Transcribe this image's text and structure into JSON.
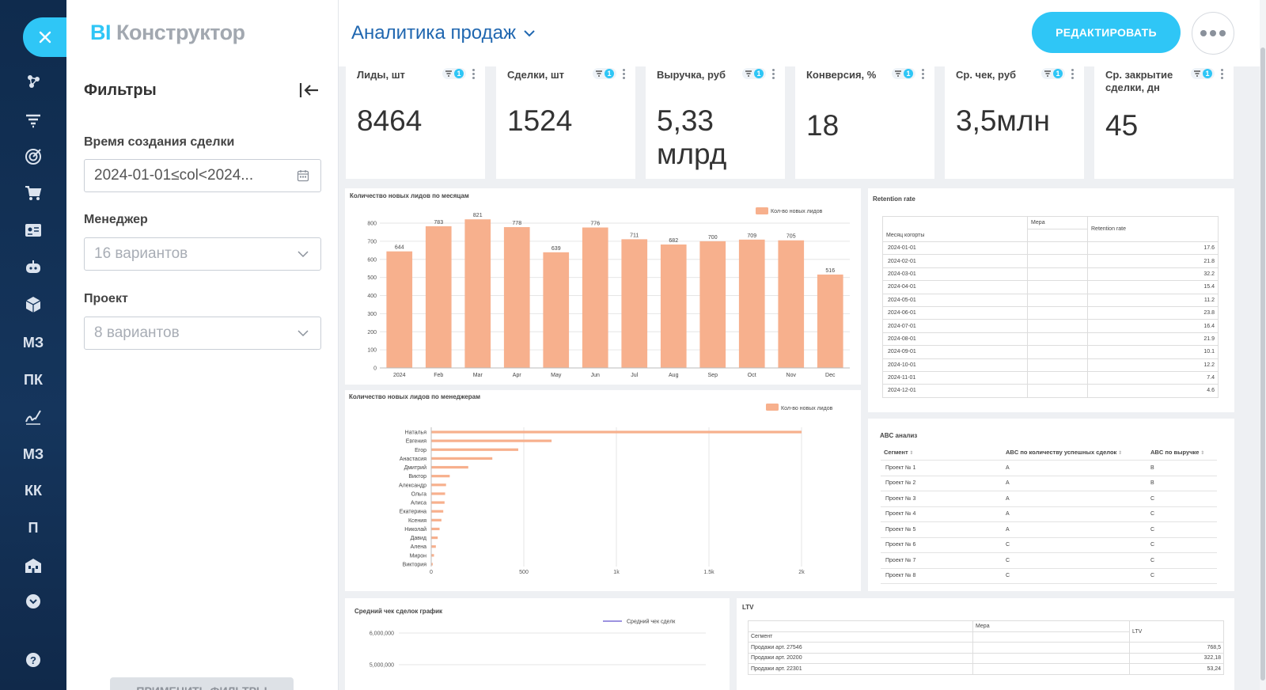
{
  "app": {
    "logo_bi": "BI",
    "logo_rest": "Конструктор"
  },
  "leftnav": {
    "items": [
      {
        "name": "sites-icon",
        "text": ""
      },
      {
        "name": "funnel-icon",
        "text": ""
      },
      {
        "name": "target-icon",
        "text": ""
      },
      {
        "name": "cart-icon",
        "text": ""
      },
      {
        "name": "contact-card-icon",
        "text": ""
      },
      {
        "name": "robot-icon",
        "text": ""
      },
      {
        "name": "box-icon",
        "text": ""
      },
      {
        "name": "nav-text-m3",
        "text": "МЗ"
      },
      {
        "name": "nav-text-pk",
        "text": "ПК"
      },
      {
        "name": "signature-icon",
        "text": ""
      },
      {
        "name": "nav-text-m3-2",
        "text": "МЗ"
      },
      {
        "name": "nav-text-kk",
        "text": "КК"
      },
      {
        "name": "nav-text-p",
        "text": "П"
      },
      {
        "name": "building-icon",
        "text": ""
      },
      {
        "name": "chevron-circle-icon",
        "text": ""
      },
      {
        "name": "help-icon",
        "text": ""
      }
    ]
  },
  "filters": {
    "title": "Фильтры",
    "created_label": "Время создания сделки",
    "created_value": "2024-01-01≤col<2024...",
    "manager_label": "Менеджер",
    "manager_placeholder": "16 вариантов",
    "project_label": "Проект",
    "project_placeholder": "8 вариантов",
    "apply_label": "ПРИМЕНИТЬ ФИЛЬТРЫ"
  },
  "header": {
    "title": "Аналитика продаж",
    "edit_label": "РЕДАКТИРОВАТЬ"
  },
  "kpis": [
    {
      "title": "Лиды, шт",
      "value": "8464",
      "badge": "1"
    },
    {
      "title": "Сделки, шт",
      "value": "1524",
      "badge": "1"
    },
    {
      "title": "Выручка, руб",
      "value": "5,33 млрд",
      "badge": "1"
    },
    {
      "title": "Конверсия, %",
      "value": "18",
      "badge": "1"
    },
    {
      "title": "Ср. чек, руб",
      "value": "3,5млн",
      "badge": "1"
    },
    {
      "title": "Ср. закрытие сделки, дн",
      "value": "45",
      "badge": "1"
    }
  ],
  "chart_data": [
    {
      "type": "bar",
      "title": "Количество новых лидов по месяцам",
      "legend": "Кол-во новых лидов",
      "legend_position": "top-right",
      "categories": [
        "2024",
        "Feb",
        "Mar",
        "Apr",
        "May",
        "Jun",
        "Jul",
        "Aug",
        "Sep",
        "Oct",
        "Nov",
        "Dec"
      ],
      "values": [
        644,
        783,
        821,
        778,
        639,
        776,
        711,
        682,
        700,
        709,
        705,
        516
      ],
      "ylim": [
        0,
        800
      ],
      "yticks": [
        0,
        100,
        200,
        300,
        400,
        500,
        600,
        700,
        800
      ],
      "grid": true,
      "color": "#f7b08d"
    },
    {
      "type": "bar",
      "orientation": "horizontal",
      "title": "Количество новых лидов по менеджерам",
      "legend": "Кол-во новых лидов",
      "legend_position": "top-right",
      "categories": [
        "Наталья",
        "Евгения",
        "Егор",
        "Анастасия",
        "Дмитрий",
        "Виктор",
        "Александр",
        "Ольга",
        "Алиса",
        "Екатерина",
        "Ксения",
        "Николай",
        "Давид",
        "Алена",
        "Мирон",
        "Виктория"
      ],
      "values": [
        2000,
        650,
        470,
        330,
        200,
        100,
        80,
        75,
        72,
        65,
        55,
        45,
        35,
        25,
        15,
        8
      ],
      "xlim": [
        0,
        2000
      ],
      "xticks": [
        "0",
        "500",
        "1k",
        "1.5k",
        "2k"
      ],
      "color": "#f7b08d"
    },
    {
      "type": "line",
      "title": "Средний чек сделок график",
      "legend": "Средний чек сделк",
      "yticks": [
        "6,000,000",
        "5,000,000"
      ],
      "series": [
        {
          "name": "Средний чек сделк",
          "values": []
        }
      ],
      "color": "#7b6fd6"
    },
    {
      "type": "table",
      "title": "Retention rate",
      "header_measure": "Мера",
      "header_col": "Retention rate",
      "header_row": "Месяц когорты",
      "rows": [
        {
          "month": "2024-01-01",
          "value": "17.6"
        },
        {
          "month": "2024-02-01",
          "value": "21.8"
        },
        {
          "month": "2024-03-01",
          "value": "32.2"
        },
        {
          "month": "2024-04-01",
          "value": "15.4"
        },
        {
          "month": "2024-05-01",
          "value": "11.2"
        },
        {
          "month": "2024-06-01",
          "value": "23.8"
        },
        {
          "month": "2024-07-01",
          "value": "16.4"
        },
        {
          "month": "2024-08-01",
          "value": "21.9"
        },
        {
          "month": "2024-09-01",
          "value": "10.1"
        },
        {
          "month": "2024-10-01",
          "value": "12.2"
        },
        {
          "month": "2024-11-01",
          "value": "7.4"
        },
        {
          "month": "2024-12-01",
          "value": "4.6"
        }
      ]
    },
    {
      "type": "table",
      "title": "ABC анализ",
      "columns": [
        "Сегмент",
        "ABC по количеству успешных сделок",
        "ABC по выручке"
      ],
      "rows": [
        [
          "Проект № 1",
          "A",
          "B"
        ],
        [
          "Проект № 2",
          "A",
          "B"
        ],
        [
          "Проект № 3",
          "A",
          "C"
        ],
        [
          "Проект № 4",
          "A",
          "C"
        ],
        [
          "Проект № 5",
          "A",
          "C"
        ],
        [
          "Проект № 6",
          "C",
          "C"
        ],
        [
          "Проект № 7",
          "C",
          "C"
        ],
        [
          "Проект № 8",
          "C",
          "C"
        ]
      ]
    },
    {
      "type": "table",
      "title": "LTV",
      "header_measure": "Мера",
      "header_col": "LTV",
      "header_row": "Сегмент",
      "rows": [
        {
          "segment": "Продажи арт. 27546",
          "value": "768,5"
        },
        {
          "segment": "Продажи арт. 20200",
          "value": "322,18"
        },
        {
          "segment": "Продажи арт. 22301",
          "value": "53,24"
        }
      ]
    }
  ]
}
